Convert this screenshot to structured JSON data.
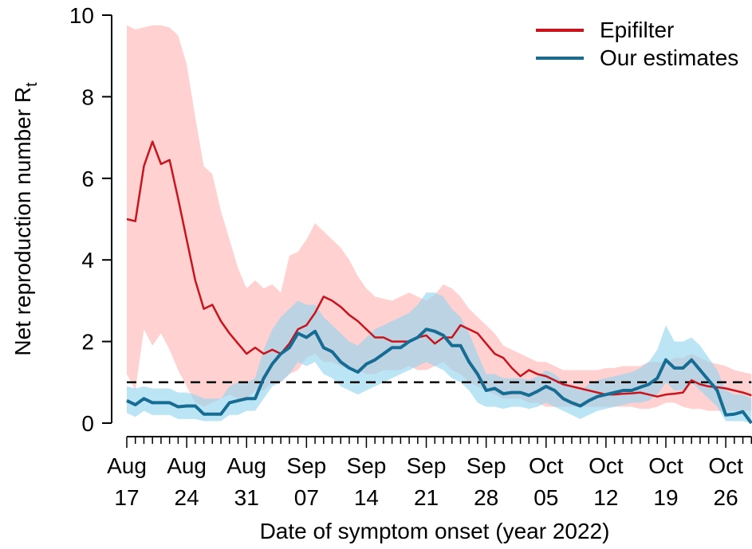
{
  "chart_data": {
    "type": "line",
    "y_label": "Net reproduction number R",
    "y_label_sub": "t",
    "x_label": "Date of symptom onset (year 2022)",
    "categories": [
      "Aug 17",
      null,
      null,
      null,
      null,
      null,
      null,
      "Aug 24",
      null,
      null,
      null,
      null,
      null,
      null,
      "Aug 31",
      null,
      null,
      null,
      null,
      null,
      null,
      "Sep 07",
      null,
      null,
      null,
      null,
      null,
      null,
      "Sep 14",
      null,
      null,
      null,
      null,
      null,
      null,
      "Sep 21",
      null,
      null,
      null,
      null,
      null,
      null,
      "Sep 28",
      null,
      null,
      null,
      null,
      null,
      null,
      "Oct 05",
      null,
      null,
      null,
      null,
      null,
      null,
      "Oct 12",
      null,
      null,
      null,
      null,
      null,
      null,
      "Oct 19",
      null,
      null,
      null,
      null,
      null,
      null,
      "Oct 26",
      null,
      null,
      null
    ],
    "ylim": [
      0,
      10
    ],
    "yticks": [
      0,
      2,
      4,
      6,
      8,
      10
    ],
    "reference_line": 1,
    "series": [
      {
        "name": "Epifilter",
        "color": "#c8141c",
        "band_color": "#ffb3b3",
        "values": [
          5.0,
          4.95,
          6.3,
          6.9,
          6.35,
          6.45,
          5.5,
          4.5,
          3.5,
          2.8,
          2.9,
          2.5,
          2.2,
          1.95,
          1.7,
          1.85,
          1.7,
          1.8,
          1.7,
          1.95,
          2.3,
          2.4,
          2.7,
          3.1,
          3.0,
          2.85,
          2.65,
          2.5,
          2.3,
          2.1,
          2.1,
          2.0,
          2.0,
          2.0,
          2.1,
          2.15,
          1.95,
          2.1,
          2.1,
          2.4,
          2.3,
          2.2,
          1.95,
          1.7,
          1.6,
          1.35,
          1.15,
          1.3,
          1.2,
          1.15,
          1.05,
          0.95,
          0.9,
          0.85,
          0.8,
          0.75,
          0.7,
          0.7,
          0.72,
          0.73,
          0.75,
          0.7,
          0.65,
          0.7,
          0.72,
          0.75,
          1.05,
          0.95,
          0.9,
          0.88,
          0.85,
          0.8,
          0.75,
          0.68
        ],
        "upper": [
          9.75,
          9.65,
          9.7,
          9.75,
          9.75,
          9.7,
          9.5,
          8.8,
          7.5,
          6.3,
          6.1,
          5.2,
          4.5,
          3.8,
          3.3,
          3.5,
          3.3,
          3.4,
          3.2,
          4.1,
          4.2,
          4.5,
          4.9,
          4.7,
          4.5,
          4.3,
          4.0,
          3.6,
          3.3,
          3.1,
          3.05,
          3.0,
          3.1,
          3.2,
          3.1,
          3.0,
          3.15,
          3.4,
          3.3,
          3.1,
          2.8,
          2.6,
          2.4,
          2.2,
          1.9,
          1.8,
          1.7,
          1.6,
          1.5,
          1.5,
          1.4,
          1.3,
          1.3,
          1.3,
          1.3,
          1.3,
          1.35,
          1.35,
          1.4,
          1.4,
          1.4,
          1.5,
          1.5,
          1.5,
          1.6,
          1.6,
          1.7,
          1.6,
          1.5,
          1.45,
          1.4,
          1.3,
          1.25,
          1.2
        ],
        "lower": [
          1.2,
          0.8,
          2.3,
          1.9,
          2.2,
          1.8,
          1.3,
          0.9,
          0.5,
          0.4,
          0.5,
          0.6,
          0.7,
          0.6,
          0.6,
          0.8,
          0.8,
          1.0,
          1.0,
          1.2,
          1.3,
          1.6,
          1.7,
          1.5,
          1.5,
          1.4,
          1.3,
          1.3,
          1.2,
          1.2,
          1.3,
          1.3,
          1.3,
          1.4,
          1.3,
          1.3,
          1.4,
          1.5,
          1.3,
          1.2,
          1.0,
          0.9,
          0.8,
          0.7,
          0.6,
          0.6,
          0.6,
          0.5,
          0.5,
          0.4,
          0.4,
          0.4,
          0.4,
          0.4,
          0.4,
          0.4,
          0.4,
          0.4,
          0.4,
          0.4,
          0.35,
          0.35,
          0.4,
          0.5,
          0.5,
          0.4,
          0.35,
          0.35,
          0.3,
          0.3,
          0.3,
          0.3,
          0.3,
          0.3
        ]
      },
      {
        "name": "Our estimates",
        "color": "#176c93",
        "band_color": "#8dd3ee",
        "values": [
          0.55,
          0.45,
          0.6,
          0.5,
          0.5,
          0.5,
          0.4,
          0.42,
          0.42,
          0.22,
          0.22,
          0.22,
          0.5,
          0.55,
          0.6,
          0.6,
          1.1,
          1.45,
          1.7,
          1.85,
          2.2,
          2.1,
          2.25,
          1.85,
          1.75,
          1.5,
          1.35,
          1.25,
          1.45,
          1.55,
          1.7,
          1.85,
          1.85,
          2.0,
          2.1,
          2.3,
          2.25,
          2.15,
          1.9,
          1.9,
          1.5,
          1.2,
          0.8,
          0.85,
          0.72,
          0.75,
          0.75,
          0.68,
          0.78,
          0.9,
          0.8,
          0.6,
          0.5,
          0.42,
          0.55,
          0.65,
          0.7,
          0.75,
          0.8,
          0.8,
          0.88,
          0.95,
          1.1,
          1.55,
          1.35,
          1.35,
          1.55,
          1.3,
          1.05,
          0.8,
          0.2,
          0.22,
          0.28,
          0.0
        ],
        "upper": [
          0.9,
          0.85,
          0.9,
          0.85,
          0.85,
          0.85,
          0.75,
          0.75,
          0.7,
          0.6,
          0.6,
          0.6,
          0.9,
          1.0,
          1.0,
          1.1,
          1.8,
          2.3,
          2.6,
          2.8,
          3.0,
          2.9,
          2.9,
          2.6,
          2.4,
          2.2,
          2.0,
          1.9,
          2.1,
          2.3,
          2.4,
          2.5,
          2.6,
          2.7,
          2.9,
          3.2,
          3.2,
          3.1,
          2.8,
          2.6,
          2.2,
          1.7,
          1.2,
          1.2,
          1.1,
          1.1,
          1.1,
          1.05,
          1.15,
          1.3,
          1.2,
          1.0,
          0.9,
          0.8,
          0.95,
          1.05,
          1.1,
          1.15,
          1.2,
          1.25,
          1.35,
          1.5,
          1.8,
          2.4,
          2.0,
          2.0,
          2.1,
          1.9,
          1.6,
          1.3,
          0.8,
          0.7,
          0.7,
          0.6
        ],
        "lower": [
          0.25,
          0.15,
          0.3,
          0.2,
          0.2,
          0.2,
          0.1,
          0.1,
          0.1,
          0.05,
          0.05,
          0.05,
          0.2,
          0.2,
          0.3,
          0.3,
          0.6,
          0.9,
          1.0,
          1.2,
          1.5,
          1.4,
          1.5,
          1.2,
          1.1,
          0.9,
          0.8,
          0.7,
          0.8,
          0.9,
          1.0,
          1.1,
          1.2,
          1.3,
          1.4,
          1.5,
          1.4,
          1.3,
          1.1,
          1.0,
          0.8,
          0.5,
          0.4,
          0.4,
          0.35,
          0.4,
          0.4,
          0.35,
          0.4,
          0.5,
          0.4,
          0.3,
          0.2,
          0.1,
          0.2,
          0.3,
          0.35,
          0.4,
          0.45,
          0.5,
          0.5,
          0.55,
          0.7,
          1.0,
          0.8,
          0.8,
          1.0,
          0.8,
          0.6,
          0.4,
          0.05,
          0.05,
          0.05,
          0.0
        ]
      }
    ]
  }
}
